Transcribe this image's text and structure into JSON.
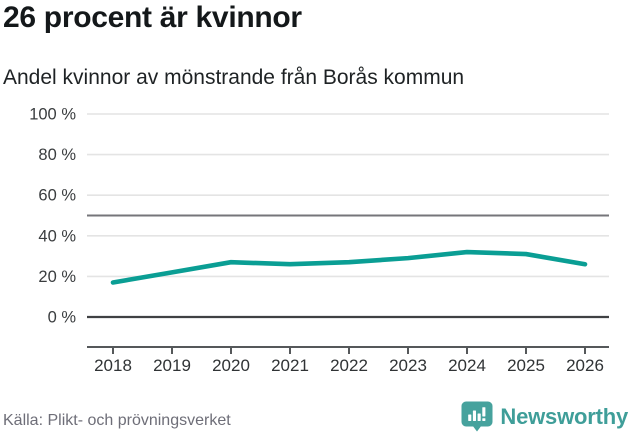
{
  "header": {
    "title": "26 procent är kvinnor",
    "subtitle": "Andel kvinnor av mönstrande från Borås kommun"
  },
  "footer": {
    "source": "Källa: Plikt- och prövningsverket",
    "brand": "Newsworthy"
  },
  "colors": {
    "line": "#0a9e94",
    "grid": "#e4e4e4",
    "reference_line_50": "#75757a",
    "zero_line": "#3f4143",
    "axis": "#55585a",
    "y_label": "#3a3d3f",
    "x_label": "#303335",
    "brand_teal": "#46a29d",
    "brand_text_teal": "#3f9e99",
    "source_text": "#6e6e78"
  },
  "chart_data": {
    "type": "line",
    "title": "26 procent är kvinnor",
    "subtitle": "Andel kvinnor av mönstrande från Borås kommun",
    "x": [
      2018,
      2019,
      2020,
      2021,
      2022,
      2023,
      2024,
      2025,
      2026
    ],
    "series": [
      {
        "name": "Andel kvinnor av mönstrande från Borås kommun",
        "values": [
          17,
          22,
          27,
          26,
          27,
          29,
          32,
          31,
          26
        ]
      }
    ],
    "xlabel": "",
    "ylabel": "",
    "ylim": [
      0,
      100
    ],
    "yticks": [
      0,
      20,
      40,
      60,
      80,
      100
    ],
    "ytick_suffix": " %",
    "reference_line": 50,
    "grid": true,
    "legend": false,
    "highlight_value_text": "26 procent",
    "source": "Källa: Plikt- och prövningsverket"
  }
}
